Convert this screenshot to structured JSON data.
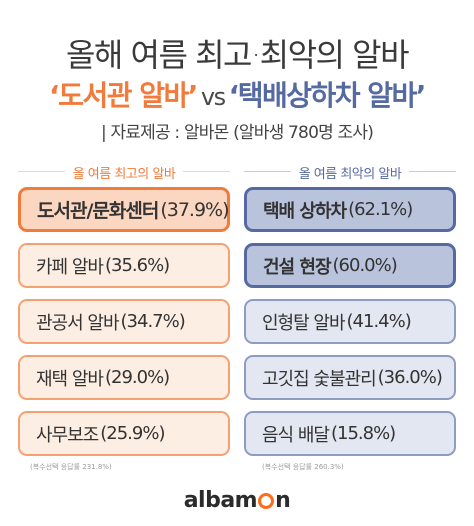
{
  "header": {
    "title": "올해 여름 최고·최악의 알바",
    "sub_left": "‘도서관 알바’",
    "sub_vs": "vs",
    "sub_right": "‘택배상하차 알바’",
    "source": "| 자료제공 : 알바몬 (알바생 780명 조사)"
  },
  "colors": {
    "best_accent": "#f27a3a",
    "worst_accent": "#556aa0"
  },
  "best": {
    "heading": "올 여름 최고의 알바",
    "items": [
      {
        "name": "도서관/문화센터",
        "pct": "(37.9%)"
      },
      {
        "name": "카페 알바",
        "pct": "(35.6%)"
      },
      {
        "name": "관공서 알바",
        "pct": "(34.7%)"
      },
      {
        "name": "재택 알바",
        "pct": "(29.0%)"
      },
      {
        "name": "사무보조",
        "pct": "(25.9%)"
      }
    ],
    "footnote": "(복수선택 응답률 231.8%)"
  },
  "worst": {
    "heading": "올 여름 최악의 알바",
    "items": [
      {
        "name": "택배 상하차",
        "pct": "(62.1%)"
      },
      {
        "name": "건설 현장",
        "pct": "(60.0%)"
      },
      {
        "name": "인형탈 알바",
        "pct": "(41.4%)"
      },
      {
        "name": "고깃집 숯불관리",
        "pct": "(36.0%)"
      },
      {
        "name": "음식 배달",
        "pct": "(15.8%)"
      }
    ],
    "footnote": "(복수선택 응답률 260.3%)"
  },
  "logo": {
    "part1": "albam",
    "part2": "n"
  }
}
